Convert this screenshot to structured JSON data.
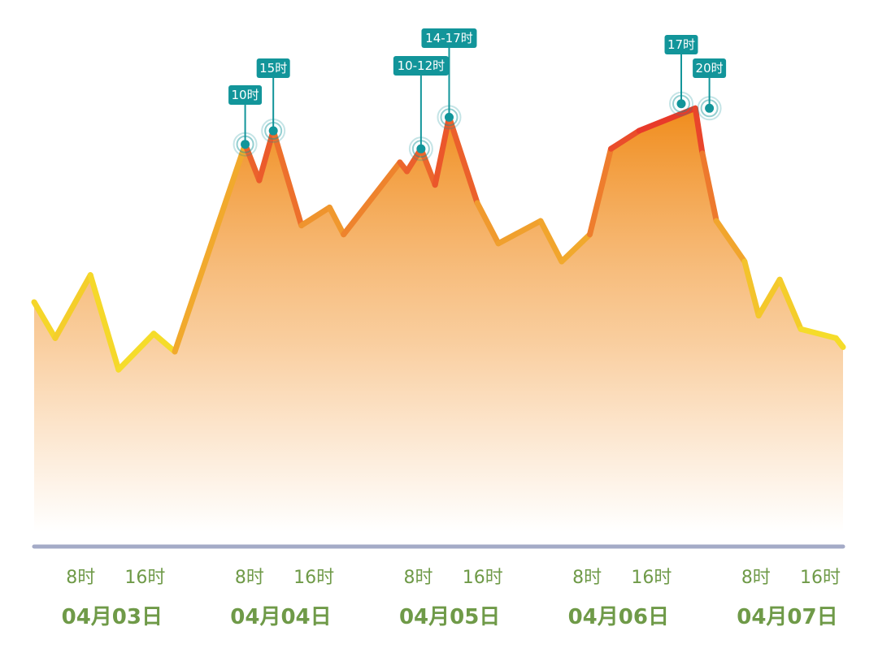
{
  "chart_data": {
    "type": "area",
    "title": "",
    "xlabel": "",
    "ylabel": "",
    "days": [
      "04月03日",
      "04月04日",
      "04月05日",
      "04月06日",
      "04月07日"
    ],
    "hour_ticks": [
      "8时",
      "16时"
    ],
    "x_unit": "hours since 04月03日 0时",
    "y_range": [
      0,
      100
    ],
    "grid": false,
    "legend": "none",
    "x": [
      0,
      3,
      8,
      12,
      17,
      20,
      30,
      32,
      34,
      38,
      42,
      44,
      52,
      53,
      55,
      57,
      59,
      63,
      66,
      72,
      75,
      79,
      82,
      86,
      94,
      95,
      97,
      101,
      103,
      106,
      109,
      114,
      115
    ],
    "values": [
      51,
      43,
      57,
      36,
      44,
      40,
      86,
      78,
      89,
      68,
      72,
      66,
      82,
      80,
      85,
      77,
      92,
      73,
      64,
      69,
      60,
      66,
      85,
      89,
      94,
      84,
      69,
      60,
      48,
      56,
      45,
      43,
      41
    ],
    "peaks": [
      {
        "label": "10时",
        "x": 30,
        "value": 86
      },
      {
        "label": "15时",
        "x": 34,
        "value": 89
      },
      {
        "label": "10-12时",
        "x": 55,
        "value": 85
      },
      {
        "label": "14-17时",
        "x": 59,
        "value": 92
      },
      {
        "label": "17时",
        "x": 92,
        "value": 95
      },
      {
        "label": "20时",
        "x": 96,
        "value": 94
      }
    ],
    "colors": {
      "line_low": "#f5dc2a",
      "line_mid": "#f09a2e",
      "line_high": "#e8382a",
      "fill_top": "#f08c1c",
      "axis": "#a4abc7",
      "peak_marker": "#12959a",
      "tick_text": "#6f9a48"
    }
  }
}
